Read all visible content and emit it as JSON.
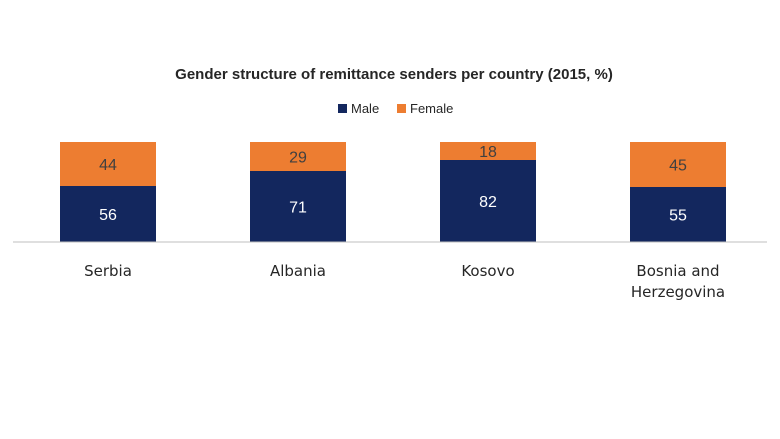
{
  "chart_data": {
    "type": "bar",
    "stacked": true,
    "title": "Gender structure of remittance senders per country (2015, %)",
    "categories": [
      [
        "Serbia"
      ],
      [
        "Albania"
      ],
      [
        "Kosovo"
      ],
      [
        "Bosnia and",
        "Herzegovina"
      ]
    ],
    "series": [
      {
        "name": "Male",
        "values": [
          56,
          71,
          82,
          55
        ],
        "color": "#13275e",
        "label_color": "#ffffff"
      },
      {
        "name": "Female",
        "values": [
          44,
          29,
          18,
          45
        ],
        "color": "#ed7d31",
        "label_color": "#404040"
      }
    ],
    "ylim": [
      0,
      100
    ],
    "grid": false,
    "legend_position": "top-center",
    "data_labels": true
  }
}
